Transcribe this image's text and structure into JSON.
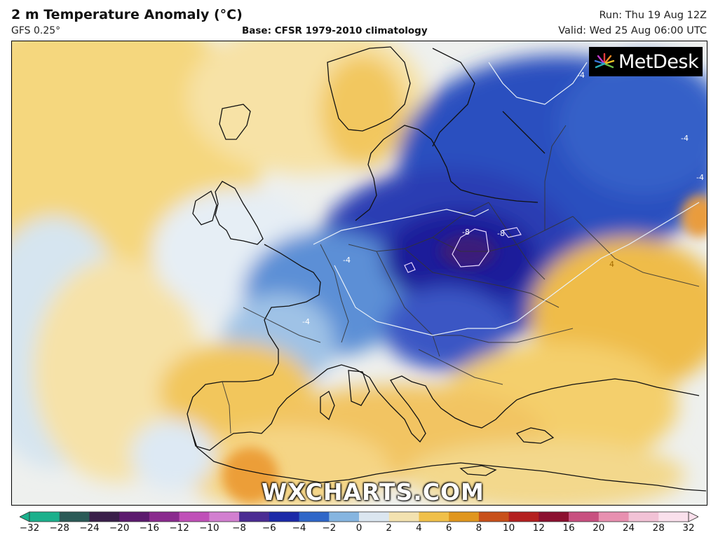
{
  "header": {
    "title": "2 m Temperature Anomaly (°C)",
    "model": "GFS 0.25°",
    "base": "Base: CFSR 1979-2010 climatology",
    "run": "Run: Thu 19 Aug 12Z",
    "valid": "Valid: Wed 25 Aug 06:00 UTC"
  },
  "logo": {
    "text": "MetDesk"
  },
  "watermark": "WXCHARTS.COM",
  "contour_labels": [
    "-4",
    "-4",
    "-4",
    "-4",
    "-4",
    "-8",
    "-8",
    "4"
  ],
  "colorbar": {
    "ticks": [
      "−32",
      "−28",
      "−24",
      "−20",
      "−16",
      "−12",
      "−10",
      "−8",
      "−6",
      "−4",
      "−2",
      "0",
      "2",
      "4",
      "6",
      "8",
      "10",
      "12",
      "16",
      "20",
      "24",
      "28",
      "32"
    ],
    "colors": [
      "#1bb08c",
      "#2b5a57",
      "#3a1f4a",
      "#5c1a6e",
      "#8a2a8e",
      "#c050b8",
      "#d27fd0",
      "#4b2c93",
      "#1c2aa8",
      "#2f66c8",
      "#86b5e0",
      "#dbe6f0",
      "#f3e2b0",
      "#f0c04a",
      "#e0961e",
      "#c8501a",
      "#b42020",
      "#8c1030",
      "#c85080",
      "#e890b0",
      "#f2c2d6",
      "#fae0ec"
    ],
    "accent_cold": "#1c2aa8",
    "accent_warm": "#f0c04a"
  }
}
